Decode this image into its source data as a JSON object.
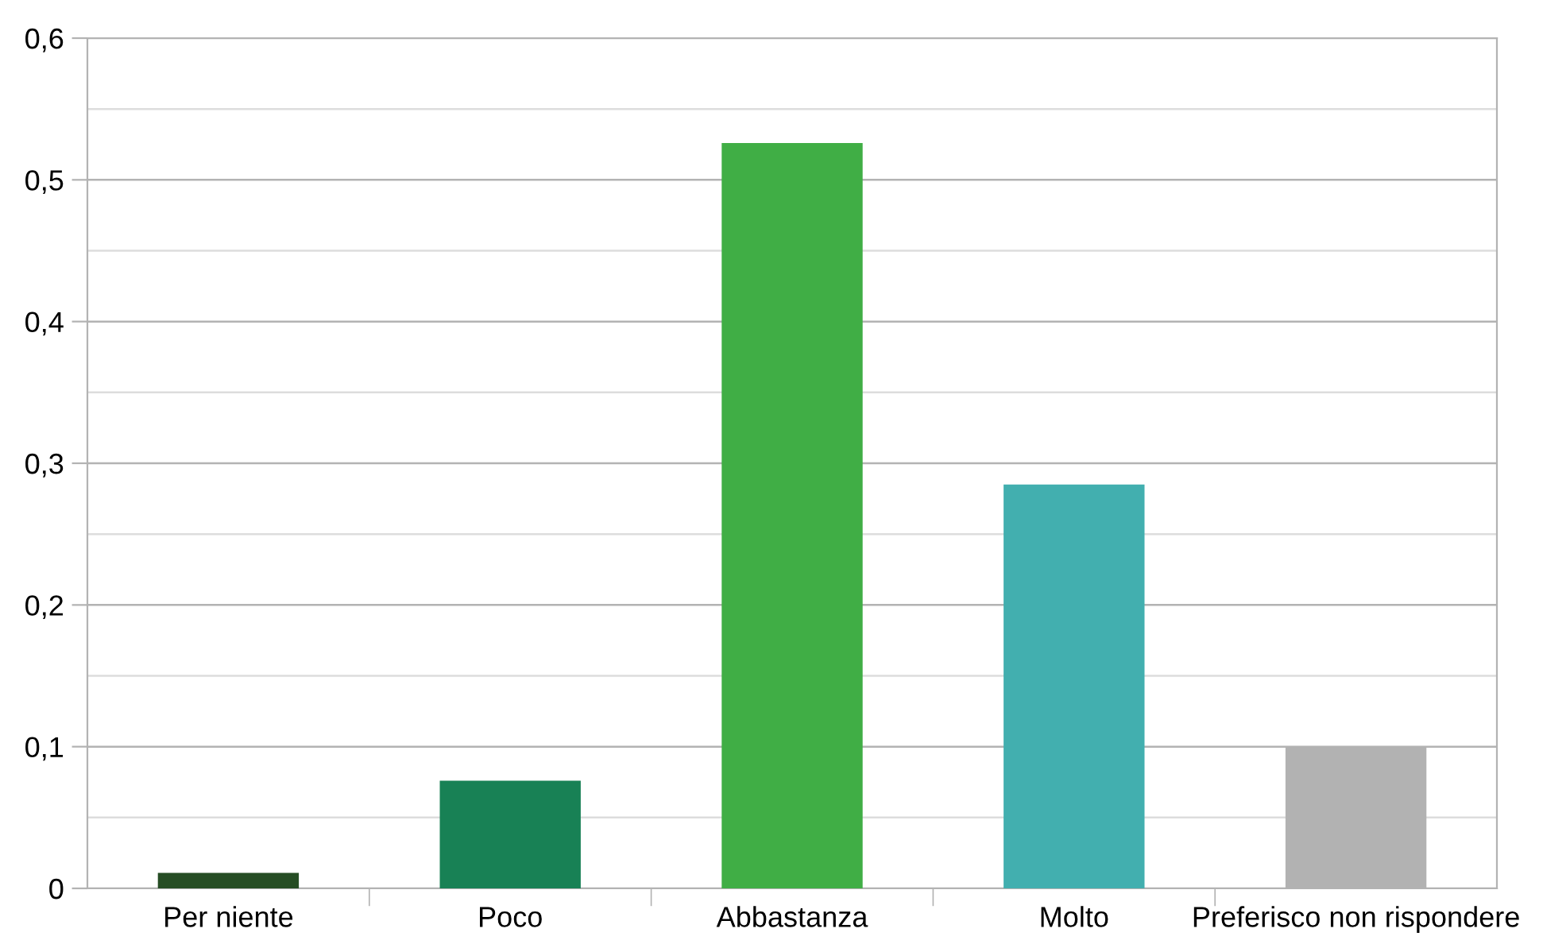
{
  "chart_data": {
    "type": "bar",
    "categories": [
      "Per niente",
      "Poco",
      "Abbastanza",
      "Molto",
      "Preferisco non rispondere"
    ],
    "values": [
      0.011,
      0.076,
      0.526,
      0.285,
      0.1
    ],
    "colors": [
      "#264d24",
      "#188155",
      "#40ae45",
      "#42afaf",
      "#b2b2b2"
    ],
    "ylim": [
      0,
      0.6
    ],
    "yticks": [
      {
        "value": 0,
        "label": "0"
      },
      {
        "value": 0.05,
        "label": null
      },
      {
        "value": 0.1,
        "label": "0,1"
      },
      {
        "value": 0.15,
        "label": null
      },
      {
        "value": 0.2,
        "label": "0,2"
      },
      {
        "value": 0.25,
        "label": null
      },
      {
        "value": 0.3,
        "label": "0,3"
      },
      {
        "value": 0.35,
        "label": null
      },
      {
        "value": 0.4,
        "label": "0,4"
      },
      {
        "value": 0.45,
        "label": null
      },
      {
        "value": 0.5,
        "label": "0,5"
      },
      {
        "value": 0.55,
        "label": null
      },
      {
        "value": 0.6,
        "label": "0,6"
      }
    ],
    "grid": "y",
    "legend": false
  }
}
